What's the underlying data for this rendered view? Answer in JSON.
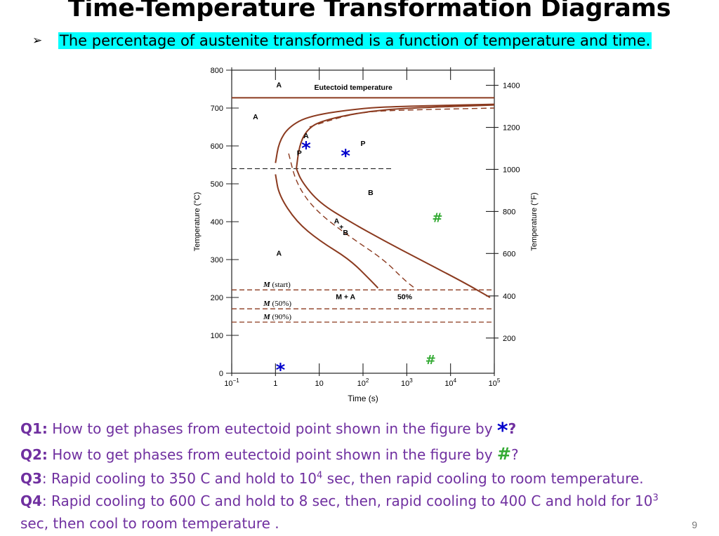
{
  "slide": {
    "title": "Time-Temperature Transformation Diagrams",
    "bullet_marker": "➢",
    "bullet_text": "The percentage of austenite transformed is a function of temperature and time.",
    "page_number": "9",
    "colors": {
      "highlight": "#00ffff",
      "question_text": "#7030a0",
      "star": "#0000cc",
      "hash": "#33aa33",
      "curve": "#8b3a1f"
    }
  },
  "questions": [
    {
      "label": "Q1:",
      "text": " How to get phases from eutectoid point shown in the figure by ",
      "marker": "*",
      "end": "?"
    },
    {
      "label": "Q2:",
      "text": " How to get phases from eutectoid point shown in the figure by ",
      "marker": "#",
      "end": "?"
    },
    {
      "label": "Q3",
      "text_before": ": Rapid cooling to 350 C and hold to 10",
      "sup": "4",
      "text_after": " sec, then rapid cooling to room temperature."
    },
    {
      "label": "Q4",
      "line1_before": ": Rapid cooling to 600 C and hold to 8 sec, then, rapid cooling to 400 C and hold for 10",
      "sup": "3",
      "line2": "sec, then cool to  room temperature ."
    }
  ],
  "chart_data": {
    "type": "line",
    "xlabel": "Time (s)",
    "ylabel": "Temperature (°C)",
    "ylabel_right": "Temperature (°F)",
    "x_scale": "log",
    "xlim": [
      0.1,
      100000
    ],
    "ylim": [
      0,
      800
    ],
    "x_ticks": [
      {
        "value": 0.1,
        "base": "10",
        "exp": "−1"
      },
      {
        "value": 1,
        "base": "1",
        "exp": ""
      },
      {
        "value": 10,
        "base": "10",
        "exp": ""
      },
      {
        "value": 100,
        "base": "10",
        "exp": "2"
      },
      {
        "value": 1000,
        "base": "10",
        "exp": "3"
      },
      {
        "value": 10000,
        "base": "10",
        "exp": "4"
      },
      {
        "value": 100000,
        "base": "10",
        "exp": "5"
      }
    ],
    "y_ticks": [
      0,
      100,
      200,
      300,
      400,
      500,
      600,
      700,
      800
    ],
    "y_ticks_right": [
      {
        "label": "1400",
        "celsius": 760
      },
      {
        "label": "1200",
        "celsius": 649
      },
      {
        "label": "1000",
        "celsius": 538
      },
      {
        "label": "800",
        "celsius": 427
      },
      {
        "label": "600",
        "celsius": 316
      },
      {
        "label": "400",
        "celsius": 204
      },
      {
        "label": "200",
        "celsius": 93
      }
    ],
    "series": [
      {
        "style": "solid",
        "points": [
          [
            0.1,
            727
          ],
          [
            10,
            727
          ],
          [
            100000,
            727
          ]
        ]
      },
      {
        "style": "solid",
        "points": [
          [
            1,
            555
          ],
          [
            1.2,
            610
          ],
          [
            2,
            650
          ],
          [
            6,
            680
          ],
          [
            100,
            700
          ],
          [
            1000,
            705
          ],
          [
            100000,
            710
          ]
        ]
      },
      {
        "style": "solid",
        "points": [
          [
            1,
            525
          ],
          [
            1.2,
            470
          ],
          [
            3,
            400
          ],
          [
            10,
            350
          ],
          [
            50,
            300
          ],
          [
            150,
            245
          ],
          [
            220,
            225
          ]
        ]
      },
      {
        "style": "dashed",
        "points": [
          [
            6,
            650
          ],
          [
            20,
            670
          ],
          [
            100,
            690
          ],
          [
            1000,
            695
          ],
          [
            100000,
            700
          ]
        ]
      },
      {
        "style": "dashed",
        "points": [
          [
            2,
            580
          ],
          [
            3,
            500
          ],
          [
            8,
            430
          ],
          [
            50,
            360
          ],
          [
            300,
            300
          ],
          [
            900,
            245
          ],
          [
            1500,
            225
          ]
        ]
      },
      {
        "style": "solid",
        "points": [
          [
            3,
            540
          ],
          [
            3.5,
            600
          ],
          [
            5,
            640
          ],
          [
            10,
            665
          ],
          [
            100,
            690
          ],
          [
            1000,
            700
          ],
          [
            100000,
            708
          ]
        ]
      },
      {
        "style": "solid",
        "points": [
          [
            3,
            540
          ],
          [
            4,
            505
          ],
          [
            10,
            450
          ],
          [
            50,
            400
          ],
          [
            300,
            350
          ],
          [
            2000,
            300
          ],
          [
            20000,
            240
          ],
          [
            80000,
            200
          ]
        ]
      }
    ],
    "hlines": [
      {
        "y": 727,
        "style": "dashdot",
        "label": "Eutectoid temperature"
      },
      {
        "y": 540,
        "style": "dashed",
        "xmax": 500
      },
      {
        "y": 220,
        "style": "dashed",
        "label": "M (start)"
      },
      {
        "y": 170,
        "style": "dashed",
        "label": "M (50%)"
      },
      {
        "y": 135,
        "style": "dashed",
        "label": "M (90%)"
      }
    ],
    "annotations": [
      {
        "text": "A",
        "x": 1.2,
        "y": 755
      },
      {
        "text": "Eutectoid temperature",
        "x": 60,
        "y": 748
      },
      {
        "text": "A",
        "x": 0.35,
        "y": 670
      },
      {
        "text": "A",
        "x": 5,
        "y": 620
      },
      {
        "text": "P",
        "x": 3.5,
        "y": 575
      },
      {
        "text": "P",
        "x": 100,
        "y": 600
      },
      {
        "text": "B",
        "x": 150,
        "y": 470
      },
      {
        "text": "A",
        "x": 25,
        "y": 395
      },
      {
        "text": "+",
        "x": 32,
        "y": 380
      },
      {
        "text": "B",
        "x": 40,
        "y": 365
      },
      {
        "text": "A",
        "x": 1.2,
        "y": 310
      },
      {
        "text": "M + A",
        "x": 40,
        "y": 195
      },
      {
        "text": "50%",
        "x": 900,
        "y": 195
      }
    ],
    "markers": [
      {
        "symbol": "*",
        "color": "#0000cc",
        "x": 5,
        "y": 600
      },
      {
        "symbol": "*",
        "color": "#0000cc",
        "x": 40,
        "y": 580
      },
      {
        "symbol": "*",
        "color": "#0000cc",
        "x": 1.3,
        "y": 15
      },
      {
        "symbol": "#",
        "color": "#33aa33",
        "x": 5000,
        "y": 410
      },
      {
        "symbol": "#",
        "color": "#33aa33",
        "x": 3500,
        "y": 35
      }
    ]
  }
}
